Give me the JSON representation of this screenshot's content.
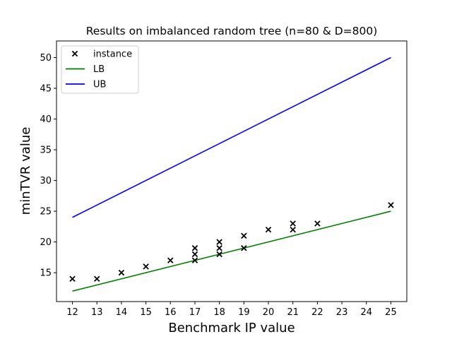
{
  "chart_data": {
    "type": "line",
    "title": "Results on imbalanced random tree (n=80 & D=800)",
    "xlabel": "Benchmark IP value",
    "ylabel": "minTVR value",
    "xlim": [
      11.35,
      25.65
    ],
    "ylim": [
      10.3,
      52.7
    ],
    "xticks": [
      12,
      13,
      14,
      15,
      16,
      17,
      18,
      19,
      20,
      21,
      22,
      23,
      24,
      25
    ],
    "yticks": [
      15,
      20,
      25,
      30,
      35,
      40,
      45,
      50
    ],
    "grid": false,
    "legend_position": "top-left",
    "series": [
      {
        "name": "instance",
        "kind": "scatter",
        "marker": "x",
        "color": "#000000",
        "points": [
          [
            12,
            14
          ],
          [
            13,
            14
          ],
          [
            14,
            15
          ],
          [
            15,
            16
          ],
          [
            16,
            17
          ],
          [
            17,
            17
          ],
          [
            17,
            18
          ],
          [
            17,
            19
          ],
          [
            18,
            18
          ],
          [
            18,
            19
          ],
          [
            18,
            20
          ],
          [
            19,
            19
          ],
          [
            19,
            21
          ],
          [
            20,
            22
          ],
          [
            21,
            22
          ],
          [
            21,
            23
          ],
          [
            22,
            23
          ],
          [
            25,
            26
          ]
        ]
      },
      {
        "name": "LB",
        "kind": "line",
        "color": "#008000",
        "points": [
          [
            12,
            12
          ],
          [
            25,
            25
          ]
        ]
      },
      {
        "name": "UB",
        "kind": "line",
        "color": "#0000ff",
        "points": [
          [
            12,
            24
          ],
          [
            25,
            50
          ]
        ]
      }
    ]
  }
}
